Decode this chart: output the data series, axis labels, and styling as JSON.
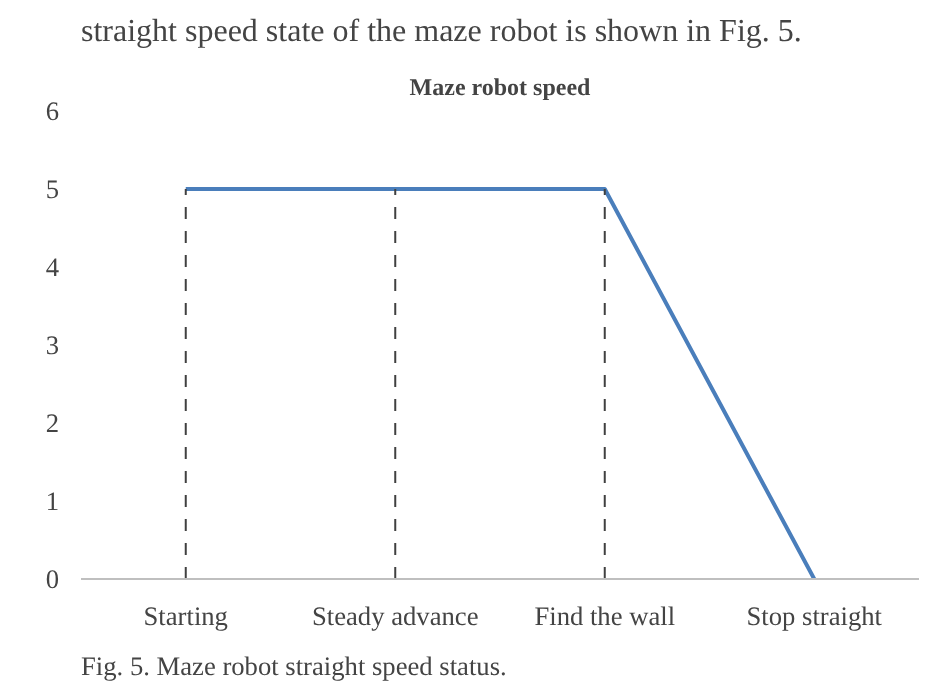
{
  "chart_data": {
    "type": "line",
    "title": "Maze robot speed",
    "categories": [
      "Starting",
      "Steady advance",
      "Find the wall",
      "Stop straight"
    ],
    "series": [
      {
        "color": "#4a7ebb",
        "values": [
          5,
          5,
          5,
          0
        ]
      }
    ],
    "ylim": [
      0,
      6
    ],
    "yticks": [
      0,
      1,
      2,
      3,
      4,
      5,
      6
    ],
    "grid": false,
    "marker": "none",
    "line_style": "solid",
    "ref_lines": [
      {
        "axis": "x",
        "value": "Starting",
        "line_style": "dashed",
        "color": "#404040"
      },
      {
        "axis": "x",
        "value": "Steady advance",
        "line_style": "dashed",
        "color": "#404040"
      },
      {
        "axis": "x",
        "value": "Find the wall",
        "line_style": "dashed",
        "color": "#404040"
      }
    ],
    "annotations": [
      "straight speed state of the maze robot is shown in Fig. 5.",
      "Fig. 5.  Maze robot straight speed status."
    ]
  }
}
